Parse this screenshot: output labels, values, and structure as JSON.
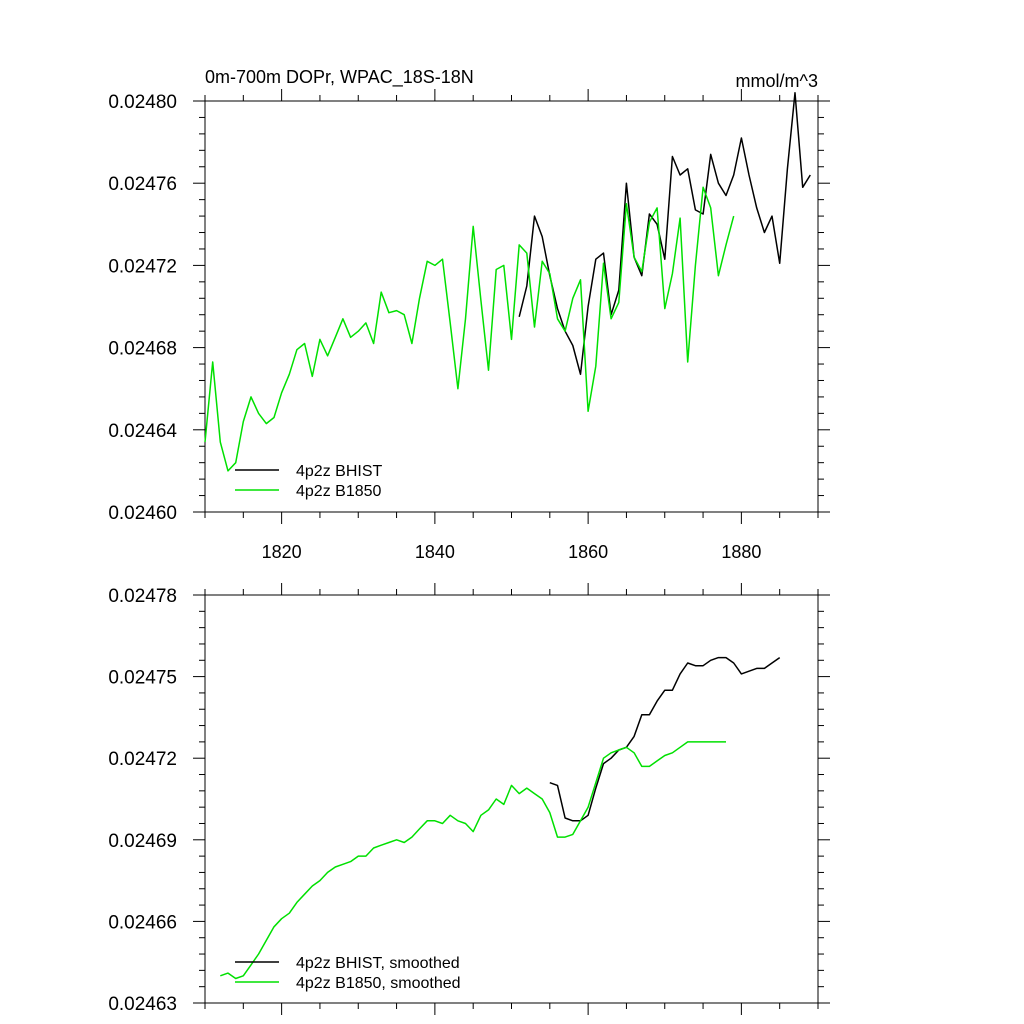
{
  "colors": {
    "bhist": "#000000",
    "b1850": "#00e000",
    "axes": "#000000",
    "background": "#ffffff"
  },
  "chart_data": [
    {
      "type": "line",
      "title": "0m-700m DOPr, WPAC_18S-18N",
      "units": "mmol/m^3",
      "xlabel": "",
      "ylabel": "",
      "xlim": [
        1810,
        1890
      ],
      "ylim": [
        0.0246,
        0.0248
      ],
      "xticks": [
        1820,
        1840,
        1860,
        1880
      ],
      "xtick_labels": [
        "1820",
        "1840",
        "1860",
        "1880"
      ],
      "yticks": [
        0.0246,
        0.02464,
        0.02468,
        0.02472,
        0.02476,
        0.0248
      ],
      "ytick_labels": [
        "0.02460",
        "0.02464",
        "0.02468",
        "0.02472",
        "0.02476",
        "0.02480"
      ],
      "legend_position": "bottom-left",
      "series": [
        {
          "name": "4p2z BHIST",
          "color": "#000000",
          "x": [
            1851,
            1852,
            1853,
            1854,
            1855,
            1856,
            1857,
            1858,
            1859,
            1860,
            1861,
            1862,
            1863,
            1864,
            1865,
            1866,
            1867,
            1868,
            1869,
            1870,
            1871,
            1872,
            1873,
            1874,
            1875,
            1876,
            1877,
            1878,
            1879,
            1880,
            1881,
            1882,
            1883,
            1884,
            1885,
            1886,
            1887,
            1888,
            1889
          ],
          "y": [
            0.024695,
            0.02471,
            0.024744,
            0.024734,
            0.024715,
            0.024699,
            0.024688,
            0.024681,
            0.024667,
            0.0247,
            0.024723,
            0.024726,
            0.024696,
            0.024708,
            0.02476,
            0.024724,
            0.024715,
            0.024745,
            0.02474,
            0.024723,
            0.024773,
            0.024764,
            0.024767,
            0.024747,
            0.024745,
            0.024774,
            0.02476,
            0.024754,
            0.024764,
            0.024782,
            0.024764,
            0.024748,
            0.024736,
            0.024744,
            0.024721,
            0.024767,
            0.024804,
            0.024758,
            0.024764
          ]
        },
        {
          "name": "4p2z B1850",
          "color": "#00e000",
          "x": [
            1810,
            1811,
            1812,
            1813,
            1814,
            1815,
            1816,
            1817,
            1818,
            1819,
            1820,
            1821,
            1822,
            1823,
            1824,
            1825,
            1826,
            1827,
            1828,
            1829,
            1830,
            1831,
            1832,
            1833,
            1834,
            1835,
            1836,
            1837,
            1838,
            1839,
            1840,
            1841,
            1842,
            1843,
            1844,
            1845,
            1846,
            1847,
            1848,
            1849,
            1850,
            1851,
            1852,
            1853,
            1854,
            1855,
            1856,
            1857,
            1858,
            1859,
            1860,
            1861,
            1862,
            1863,
            1864,
            1865,
            1866,
            1867,
            1868,
            1869,
            1870,
            1871,
            1872,
            1873,
            1874,
            1875,
            1876,
            1877,
            1878,
            1879
          ],
          "y": [
            0.024634,
            0.024673,
            0.024634,
            0.02462,
            0.024624,
            0.024644,
            0.024656,
            0.024648,
            0.024643,
            0.024646,
            0.024658,
            0.024667,
            0.024679,
            0.024682,
            0.024666,
            0.024684,
            0.024676,
            0.024685,
            0.024694,
            0.024685,
            0.024688,
            0.024692,
            0.024682,
            0.024707,
            0.024697,
            0.024698,
            0.024696,
            0.024682,
            0.024704,
            0.024722,
            0.02472,
            0.024723,
            0.024692,
            0.02466,
            0.024694,
            0.024739,
            0.024703,
            0.024669,
            0.024718,
            0.02472,
            0.024684,
            0.02473,
            0.024726,
            0.02469,
            0.024722,
            0.024716,
            0.024694,
            0.024688,
            0.024704,
            0.024713,
            0.024649,
            0.024671,
            0.024721,
            0.024694,
            0.024702,
            0.02475,
            0.024724,
            0.024717,
            0.024741,
            0.024748,
            0.024699,
            0.024716,
            0.024743,
            0.024673,
            0.02472,
            0.024758,
            0.024748,
            0.024715,
            0.02473,
            0.024744
          ]
        }
      ]
    },
    {
      "type": "line",
      "title": "",
      "xlabel": "",
      "ylabel": "",
      "xlim": [
        1810,
        1890
      ],
      "ylim": [
        0.02463,
        0.02478
      ],
      "xticks": [
        1820,
        1840,
        1860,
        1880
      ],
      "yticks": [
        0.02463,
        0.02466,
        0.02469,
        0.02472,
        0.02475,
        0.02478
      ],
      "ytick_labels": [
        "0.02463",
        "0.02466",
        "0.02469",
        "0.02472",
        "0.02475",
        "0.02478"
      ],
      "legend_position": "bottom-left",
      "series": [
        {
          "name": "4p2z BHIST, smoothed",
          "color": "#000000",
          "x": [
            1855,
            1856,
            1857,
            1858,
            1859,
            1860,
            1861,
            1862,
            1863,
            1864,
            1865,
            1866,
            1867,
            1868,
            1869,
            1870,
            1871,
            1872,
            1873,
            1874,
            1875,
            1876,
            1877,
            1878,
            1879,
            1880,
            1881,
            1882,
            1883,
            1884,
            1885
          ],
          "y": [
            0.024711,
            0.02471,
            0.024698,
            0.024697,
            0.024697,
            0.024699,
            0.024709,
            0.024718,
            0.02472,
            0.024723,
            0.024724,
            0.024728,
            0.024736,
            0.024736,
            0.024741,
            0.024745,
            0.024745,
            0.024751,
            0.024755,
            0.024754,
            0.024754,
            0.024756,
            0.024757,
            0.024757,
            0.024755,
            0.024751,
            0.024752,
            0.024753,
            0.024753,
            0.024755,
            0.024757
          ]
        },
        {
          "name": "4p2z B1850, smoothed",
          "color": "#00e000",
          "x": [
            1812,
            1813,
            1814,
            1815,
            1816,
            1817,
            1818,
            1819,
            1820,
            1821,
            1822,
            1823,
            1824,
            1825,
            1826,
            1827,
            1828,
            1829,
            1830,
            1831,
            1832,
            1833,
            1834,
            1835,
            1836,
            1837,
            1838,
            1839,
            1840,
            1841,
            1842,
            1843,
            1844,
            1845,
            1846,
            1847,
            1848,
            1849,
            1850,
            1851,
            1852,
            1853,
            1854,
            1855,
            1856,
            1857,
            1858,
            1859,
            1860,
            1861,
            1862,
            1863,
            1864,
            1865,
            1866,
            1867,
            1868,
            1869,
            1870,
            1871,
            1872,
            1873,
            1874,
            1875,
            1876,
            1877,
            1878
          ],
          "y": [
            0.02464,
            0.024641,
            0.024639,
            0.02464,
            0.024644,
            0.024648,
            0.024653,
            0.024658,
            0.024661,
            0.024663,
            0.024667,
            0.02467,
            0.024673,
            0.024675,
            0.024678,
            0.02468,
            0.024681,
            0.024682,
            0.024684,
            0.024684,
            0.024687,
            0.024688,
            0.024689,
            0.02469,
            0.024689,
            0.024691,
            0.024694,
            0.024697,
            0.024697,
            0.024696,
            0.024699,
            0.024697,
            0.024696,
            0.024693,
            0.024699,
            0.024701,
            0.024705,
            0.024703,
            0.02471,
            0.024707,
            0.024709,
            0.024707,
            0.024705,
            0.0247,
            0.024691,
            0.024691,
            0.024692,
            0.024697,
            0.024702,
            0.024711,
            0.02472,
            0.024722,
            0.024723,
            0.024724,
            0.024722,
            0.024717,
            0.024717,
            0.024719,
            0.024721,
            0.024722,
            0.024724,
            0.024726,
            0.024726,
            0.024726,
            0.024726,
            0.024726,
            0.024726
          ]
        }
      ]
    }
  ]
}
